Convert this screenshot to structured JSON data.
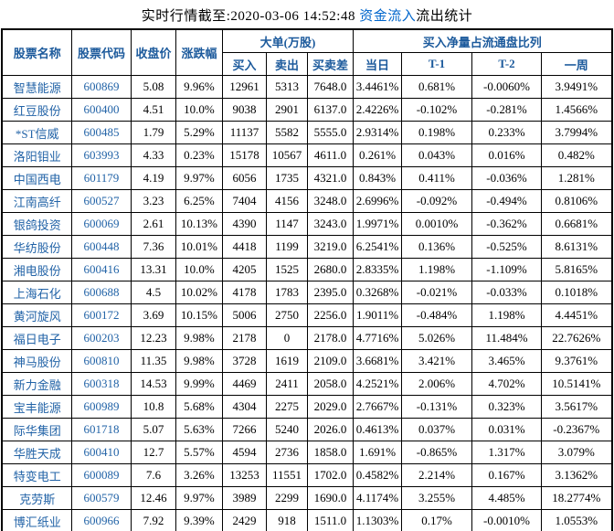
{
  "title": {
    "prefix": "实时行情截至:2020-03-06 14:52:48 ",
    "link": "资金流入",
    "suffix": "流出统计"
  },
  "colors": {
    "title_text": "#000000",
    "title_link_blue": "#0066cc",
    "header_text_blue": "#1c5a9c",
    "stock_link_blue": "#2263a7",
    "data_text": "#000000",
    "grid_border": "#000000",
    "background": "#ffffff"
  },
  "table": {
    "headers": {
      "stock_name": "股票名称",
      "stock_code": "股票代码",
      "close_price": "收盘价",
      "change_pct": "涨跌幅",
      "big_orders_group": "大单(万股)",
      "buy": "买入",
      "sell": "卖出",
      "buy_sell_diff": "买卖差",
      "net_buy_ratio_group": "买入净量占流通盘比列",
      "day": "当日",
      "t1": "T-1",
      "t2": "T-2",
      "week": "一周"
    },
    "rows": [
      [
        "智慧能源",
        "600869",
        "5.08",
        "9.96%",
        "12961",
        "5313",
        "7648.0",
        "3.4461%",
        "0.681%",
        "-0.0060%",
        "3.9491%"
      ],
      [
        "红豆股份",
        "600400",
        "4.51",
        "10.0%",
        "9038",
        "2901",
        "6137.0",
        "2.4226%",
        "-0.102%",
        "-0.281%",
        "1.4566%"
      ],
      [
        "*ST信威",
        "600485",
        "1.79",
        "5.29%",
        "11137",
        "5582",
        "5555.0",
        "2.9314%",
        "0.198%",
        "0.233%",
        "3.7994%"
      ],
      [
        "洛阳钼业",
        "603993",
        "4.33",
        "0.23%",
        "15178",
        "10567",
        "4611.0",
        "0.261%",
        "0.043%",
        "0.016%",
        "0.482%"
      ],
      [
        "中国西电",
        "601179",
        "4.19",
        "9.97%",
        "6056",
        "1735",
        "4321.0",
        "0.843%",
        "0.411%",
        "-0.036%",
        "1.281%"
      ],
      [
        "江南高纤",
        "600527",
        "3.23",
        "6.25%",
        "7404",
        "4156",
        "3248.0",
        "2.6996%",
        "-0.092%",
        "-0.494%",
        "0.8106%"
      ],
      [
        "银鸽投资",
        "600069",
        "2.61",
        "10.13%",
        "4390",
        "1147",
        "3243.0",
        "1.9971%",
        "0.0010%",
        "-0.362%",
        "0.6681%"
      ],
      [
        "华纺股份",
        "600448",
        "7.36",
        "10.01%",
        "4418",
        "1199",
        "3219.0",
        "6.2541%",
        "0.136%",
        "-0.525%",
        "8.6131%"
      ],
      [
        "湘电股份",
        "600416",
        "13.31",
        "10.0%",
        "4205",
        "1525",
        "2680.0",
        "2.8335%",
        "1.198%",
        "-1.109%",
        "5.8165%"
      ],
      [
        "上海石化",
        "600688",
        "4.5",
        "10.02%",
        "4178",
        "1783",
        "2395.0",
        "0.3268%",
        "-0.021%",
        "-0.033%",
        "0.1018%"
      ],
      [
        "黄河旋风",
        "600172",
        "3.69",
        "10.15%",
        "5006",
        "2750",
        "2256.0",
        "1.9011%",
        "-0.484%",
        "1.198%",
        "4.4451%"
      ],
      [
        "福日电子",
        "600203",
        "12.23",
        "9.98%",
        "2178",
        "0",
        "2178.0",
        "4.7716%",
        "5.026%",
        "11.484%",
        "22.7626%"
      ],
      [
        "神马股份",
        "600810",
        "11.35",
        "9.98%",
        "3728",
        "1619",
        "2109.0",
        "3.6681%",
        "3.421%",
        "3.465%",
        "9.3761%"
      ],
      [
        "新力金融",
        "600318",
        "14.53",
        "9.99%",
        "4469",
        "2411",
        "2058.0",
        "4.2521%",
        "2.006%",
        "4.702%",
        "10.5141%"
      ],
      [
        "宝丰能源",
        "600989",
        "10.8",
        "5.68%",
        "4304",
        "2275",
        "2029.0",
        "2.7667%",
        "-0.131%",
        "0.323%",
        "3.5617%"
      ],
      [
        "际华集团",
        "601718",
        "5.07",
        "5.63%",
        "7266",
        "5240",
        "2026.0",
        "0.4613%",
        "0.037%",
        "0.031%",
        "-0.2367%"
      ],
      [
        "华胜天成",
        "600410",
        "12.7",
        "5.57%",
        "4594",
        "2736",
        "1858.0",
        "1.691%",
        "-0.865%",
        "1.317%",
        "3.079%"
      ],
      [
        "特变电工",
        "600089",
        "7.6",
        "3.26%",
        "13253",
        "11551",
        "1702.0",
        "0.4582%",
        "2.214%",
        "0.167%",
        "3.1362%"
      ],
      [
        "克劳斯",
        "600579",
        "12.46",
        "9.97%",
        "3989",
        "2299",
        "1690.0",
        "4.1174%",
        "3.255%",
        "4.485%",
        "18.2774%"
      ],
      [
        "博汇纸业",
        "600966",
        "7.92",
        "9.39%",
        "2429",
        "918",
        "1511.0",
        "1.1303%",
        "0.17%",
        "-0.0010%",
        "1.0553%"
      ]
    ]
  }
}
